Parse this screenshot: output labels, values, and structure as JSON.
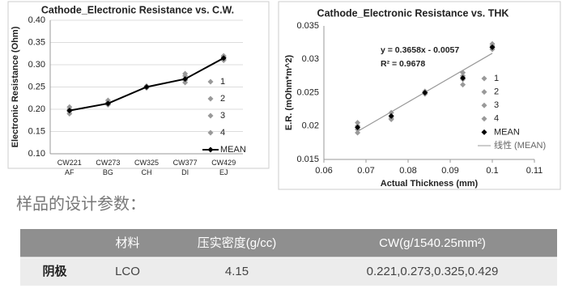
{
  "chart_data": [
    {
      "type": "line",
      "title": "Cathode_Electronic Resistance vs. C.W.",
      "ylabel": "Electronic Resistance (Ohm)",
      "categories": [
        "CW221 AF",
        "CW273 BG",
        "CW325 CH",
        "CW377 DI",
        "CW429 EJ"
      ],
      "series": [
        {
          "name": "1",
          "color": "#999999",
          "mode": "markers",
          "values": [
            0.205,
            0.22,
            0.252,
            0.28,
            0.32
          ]
        },
        {
          "name": "2",
          "color": "#999999",
          "mode": "markers",
          "values": [
            0.2,
            0.215,
            0.25,
            0.275,
            0.318
          ]
        },
        {
          "name": "3",
          "color": "#999999",
          "mode": "markers",
          "values": [
            0.195,
            0.21,
            0.248,
            0.265,
            0.312
          ]
        },
        {
          "name": "4",
          "color": "#999999",
          "mode": "markers",
          "values": [
            0.19,
            0.212,
            0.25,
            0.26,
            0.31
          ]
        },
        {
          "name": "MEAN",
          "color": "#000000",
          "mode": "lines+markers",
          "values": [
            0.197,
            0.213,
            0.25,
            0.268,
            0.315
          ]
        }
      ],
      "ylim": [
        0.1,
        0.4
      ],
      "yticks": [
        {
          "value": 0.1,
          "label": "0.10"
        },
        {
          "value": 0.15,
          "label": "0.15"
        },
        {
          "value": 0.2,
          "label": "0.20"
        },
        {
          "value": 0.25,
          "label": "0.25"
        },
        {
          "value": 0.3,
          "label": "0.30"
        },
        {
          "value": 0.35,
          "label": "0.35"
        },
        {
          "value": 0.4,
          "label": "0.40"
        }
      ],
      "grid": true,
      "legend": "right"
    },
    {
      "type": "scatter",
      "title": "Cathode_Electronic Resistance vs. THK",
      "xlabel": "Actual Thickness (mm)",
      "ylabel": "E.R. (mOhm*m^2)",
      "x": [
        0.068,
        0.076,
        0.084,
        0.093,
        0.1
      ],
      "series": [
        {
          "name": "1",
          "color": "#999999",
          "values": [
            0.0205,
            0.022,
            0.0252,
            0.028,
            0.0323
          ]
        },
        {
          "name": "2",
          "color": "#999999",
          "values": [
            0.02,
            0.0215,
            0.025,
            0.0275,
            0.032
          ]
        },
        {
          "name": "3",
          "color": "#999999",
          "values": [
            0.0195,
            0.021,
            0.0248,
            0.027,
            0.0318
          ]
        },
        {
          "name": "4",
          "color": "#999999",
          "values": [
            0.019,
            0.0212,
            0.025,
            0.0262,
            0.0315
          ]
        },
        {
          "name": "MEAN",
          "color": "#000000",
          "values": [
            0.0198,
            0.0215,
            0.025,
            0.0272,
            0.0318
          ]
        }
      ],
      "trendline": {
        "name": "线性 (MEAN)",
        "color": "#999999",
        "x": [
          0.068,
          0.1
        ],
        "y": [
          0.0192,
          0.0309
        ]
      },
      "annotations": [
        "y = 0.3658x - 0.0057",
        "R² = 0.9678"
      ],
      "xlim": [
        0.06,
        0.11
      ],
      "xticks": [
        0.06,
        0.07,
        0.08,
        0.09,
        0.1,
        0.11
      ],
      "ylim": [
        0.015,
        0.035
      ],
      "yticks": [
        0.015,
        0.02,
        0.025,
        0.03,
        0.035
      ],
      "grid": false,
      "legend": "right"
    }
  ],
  "heading": "样品的设计参数：",
  "table": {
    "header": [
      "材料",
      "压实密度(g/cc)",
      "CW(g/1540.25mm²)"
    ],
    "rows": [
      [
        "阴极",
        "LCO",
        "4.15",
        "0.221,0.273,0.325,0.429"
      ]
    ]
  }
}
